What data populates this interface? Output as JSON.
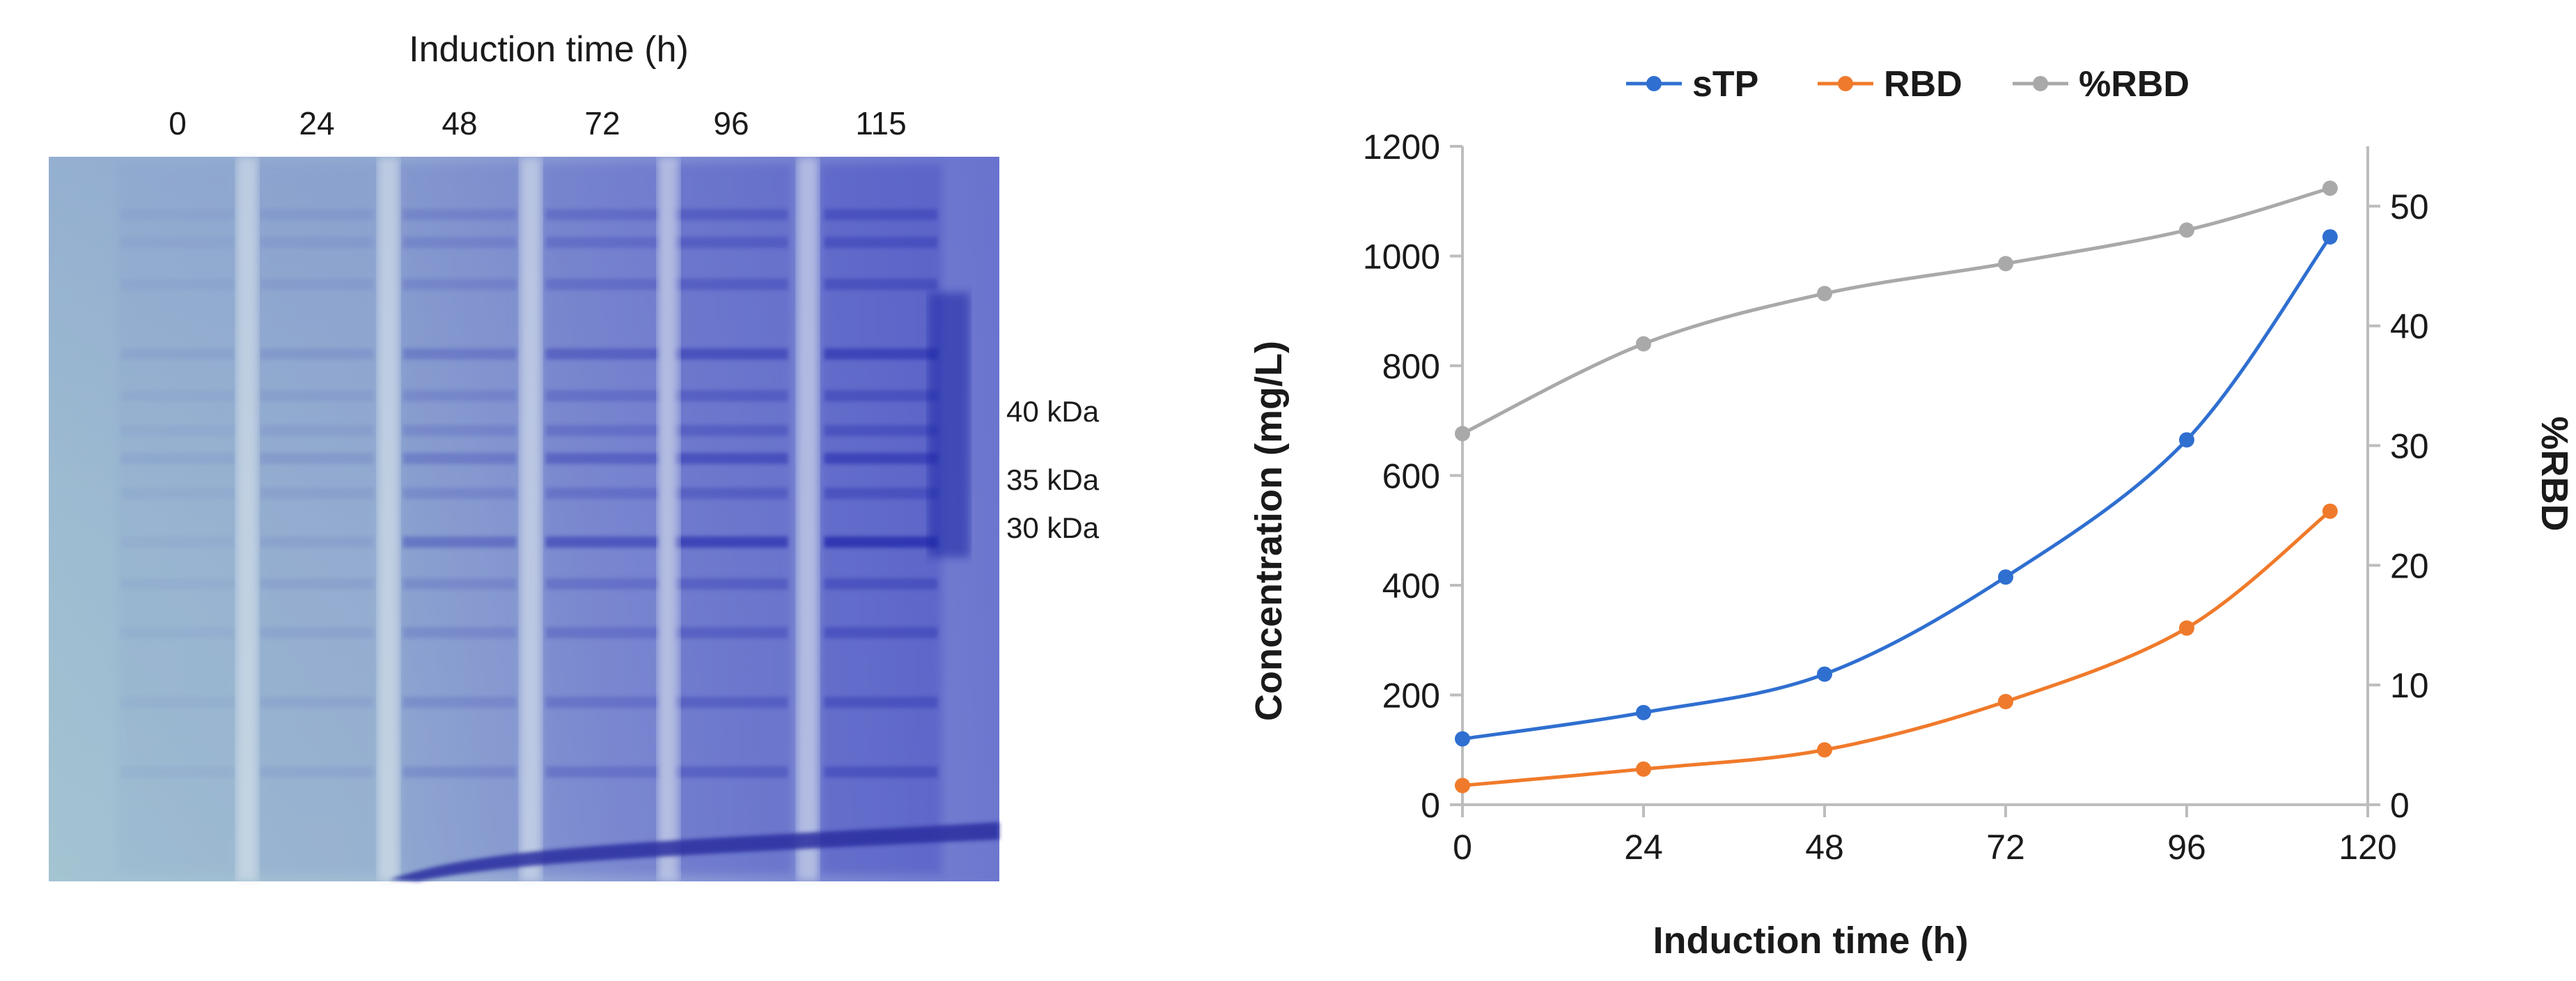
{
  "gel": {
    "title": "Induction time (h)",
    "lane_labels": [
      "0",
      "24",
      "48",
      "72",
      "96",
      "115"
    ],
    "markers": [
      "40 kDa",
      "35 kDa",
      "30 kDa"
    ]
  },
  "chart_data": {
    "type": "line",
    "xlabel": "Induction time (h)",
    "ylabel": "Concentration (mg/L)",
    "y2label": "%RBD",
    "xlim": [
      0,
      120
    ],
    "ylim": [
      0,
      1200
    ],
    "y2lim": [
      0,
      55
    ],
    "xticks": [
      0,
      24,
      48,
      72,
      96,
      120
    ],
    "yticks": [
      0,
      200,
      400,
      600,
      800,
      1000,
      1200
    ],
    "y2ticks": [
      0,
      10,
      20,
      30,
      40,
      50
    ],
    "legend_position": "top",
    "grid": false,
    "x": [
      0,
      24,
      48,
      72,
      96,
      115
    ],
    "series": [
      {
        "name": "sTP",
        "axis": "left",
        "color": "#2f6fd0",
        "values": [
          120,
          168,
          238,
          415,
          665,
          1035
        ]
      },
      {
        "name": "RBD",
        "axis": "left",
        "color": "#f07a2b",
        "values": [
          35,
          65,
          100,
          188,
          322,
          535
        ]
      },
      {
        "name": "%RBD",
        "axis": "right",
        "color": "#a9a9a9",
        "values": [
          31,
          38.5,
          42.7,
          45.2,
          48,
          51.5
        ]
      }
    ]
  }
}
